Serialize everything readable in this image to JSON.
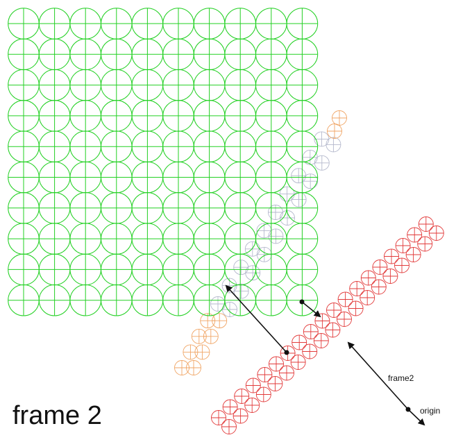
{
  "title": "frame 2",
  "annotations": {
    "frame_label": "frame2",
    "origin_label": "origin"
  },
  "colors": {
    "green": "#22d022",
    "red": "#e23a3a",
    "gray": "#b4b8cc",
    "orange": "#f0a565",
    "axis": "#111111"
  },
  "grid": {
    "rows": 10,
    "cols": 10,
    "style": "circles with crosshairs"
  },
  "diagonals": {
    "red": {
      "columns": 2,
      "count_per_column": 19,
      "style": "circles with crosshairs"
    },
    "gray": {
      "columns": 2,
      "count_per_column": 10,
      "style": "circles with crosshairs"
    },
    "orange": {
      "columns": 2,
      "count_per_column": 4,
      "style": "circles with crosshairs"
    }
  }
}
